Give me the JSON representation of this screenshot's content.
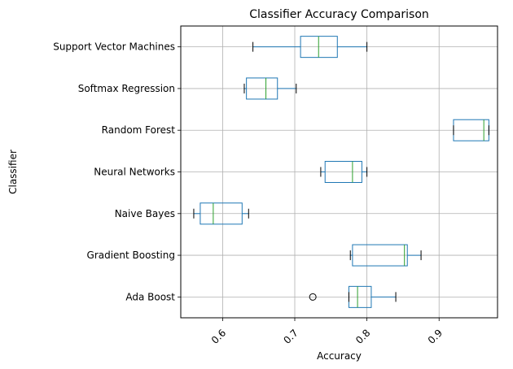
{
  "chart_data": {
    "type": "boxplot",
    "orientation": "horizontal",
    "title": "Classifier Accuracy Comparison",
    "xlabel": "Accuracy",
    "ylabel": "Classifier",
    "xlim": [
      0.542,
      0.981
    ],
    "xticks": [
      0.6,
      0.7,
      0.8,
      0.9
    ],
    "xtick_labels": [
      "0.6",
      "0.7",
      "0.8",
      "0.9"
    ],
    "xtick_rotation": 45,
    "grid": true,
    "colors": {
      "box": "#1f77b4",
      "median": "#2ca02c",
      "whisker_cap": "#000000",
      "grid": "#b0b0b0"
    },
    "categories": [
      "Ada Boost",
      "Gradient Boosting",
      "Naive Bayes",
      "Neural Networks ",
      "Random Forest",
      "Softmax Regression",
      "Support Vector Machines"
    ],
    "boxes": [
      {
        "name": "Ada Boost",
        "whislo": 0.775,
        "q1": 0.775,
        "med": 0.787,
        "q3": 0.806,
        "whishi": 0.84,
        "fliers": [
          0.725
        ]
      },
      {
        "name": "Gradient Boosting",
        "whislo": 0.777,
        "q1": 0.78,
        "med": 0.852,
        "q3": 0.856,
        "whishi": 0.875,
        "fliers": []
      },
      {
        "name": "Naive Bayes",
        "whislo": 0.56,
        "q1": 0.569,
        "med": 0.587,
        "q3": 0.627,
        "whishi": 0.636,
        "fliers": []
      },
      {
        "name": "Neural Networks ",
        "whislo": 0.736,
        "q1": 0.742,
        "med": 0.78,
        "q3": 0.793,
        "whishi": 0.8,
        "fliers": []
      },
      {
        "name": "Random Forest",
        "whislo": 0.92,
        "q1": 0.92,
        "med": 0.962,
        "q3": 0.969,
        "whishi": 0.969,
        "fliers": []
      },
      {
        "name": "Softmax Regression",
        "whislo": 0.63,
        "q1": 0.633,
        "med": 0.66,
        "q3": 0.676,
        "whishi": 0.702,
        "fliers": []
      },
      {
        "name": "Support Vector Machines",
        "whislo": 0.642,
        "q1": 0.708,
        "med": 0.733,
        "q3": 0.759,
        "whishi": 0.8,
        "fliers": []
      }
    ]
  }
}
